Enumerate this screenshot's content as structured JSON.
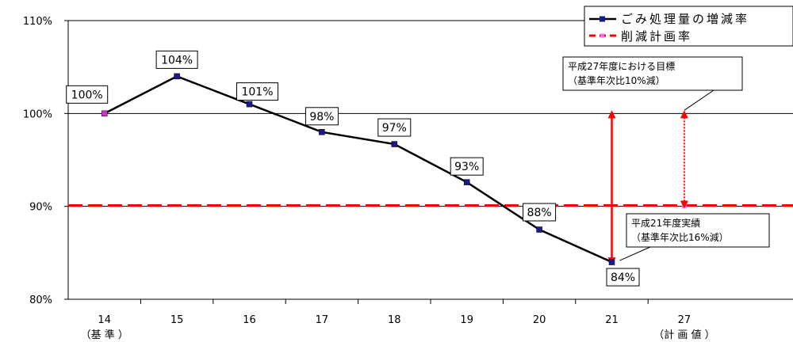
{
  "chart_data": {
    "type": "line",
    "categories": [
      "14",
      "15",
      "16",
      "17",
      "18",
      "19",
      "20",
      "21",
      "27"
    ],
    "category_sublabels": {
      "14": "（基 準 ）",
      "27": "（計 画 値 ）"
    },
    "ylim": [
      80,
      110
    ],
    "yticks": [
      "80%",
      "90%",
      "100%",
      "110%"
    ],
    "grid": true,
    "legend_position": "top-right",
    "series": [
      {
        "name": "ごみ処理量の増減率",
        "x": [
          "14",
          "15",
          "16",
          "17",
          "18",
          "19",
          "20",
          "21"
        ],
        "values": [
          100,
          104,
          101,
          98,
          96.7,
          92.6,
          87.5,
          84
        ],
        "labels": [
          "100%",
          "104%",
          "101%",
          "98%",
          "97%",
          "93%",
          "88%",
          "84%"
        ],
        "color": "#000000",
        "marker_color": "#1a1a8c"
      },
      {
        "name": "削減計画率",
        "value": 90.1,
        "color": "#ff0000",
        "style": "dashed"
      }
    ],
    "annotations": [
      {
        "x": "27",
        "lines": [
          "平成27年度における目標",
          "（基準年次比10%減）"
        ]
      },
      {
        "x": "21",
        "lines": [
          "平成21年度実績",
          "（基準年次比16%減）"
        ]
      }
    ]
  }
}
